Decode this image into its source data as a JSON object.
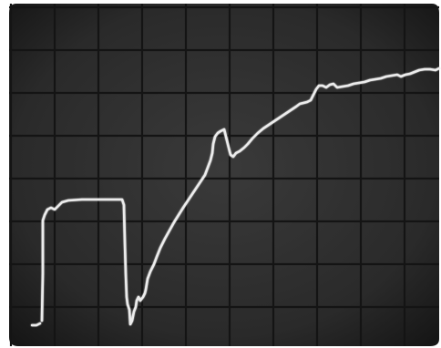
{
  "photo": {
    "subject": "oscilloscope-trace",
    "colors": {
      "screen_center": "#3a3a3a",
      "screen_edge": "#161616",
      "graticule": "#141414",
      "trace": "#ececec",
      "paper_border": "#ffffff"
    },
    "graticule": {
      "columns": 10,
      "rows": 8
    }
  }
}
